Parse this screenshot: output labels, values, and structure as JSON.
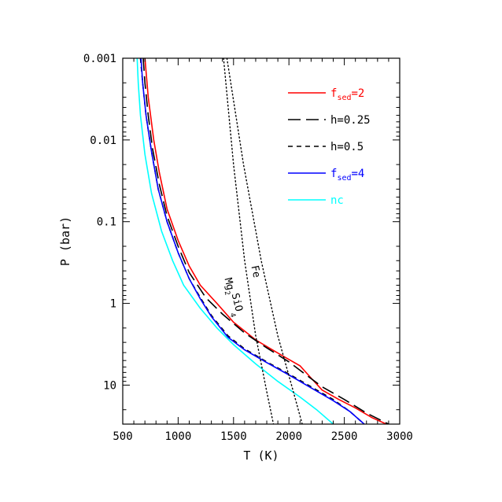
{
  "chart_data": {
    "type": "line",
    "xlabel": "T (K)",
    "ylabel": "P (bar)",
    "xlim": [
      500,
      3000
    ],
    "ylim": [
      0.001,
      30
    ],
    "y_scale": "log",
    "y_inverted": true,
    "grid": false,
    "legend_placement": "top-right",
    "x_ticks": [
      500,
      1000,
      1500,
      2000,
      2500,
      3000
    ],
    "x_tick_labels": [
      "500",
      "1000",
      "1500",
      "2000",
      "2500",
      "3000"
    ],
    "y_ticks": [
      0.001,
      0.01,
      0.1,
      1,
      10
    ],
    "y_tick_labels": [
      "0.001",
      "0.01",
      "0.1",
      "1",
      "10"
    ],
    "series": [
      {
        "name": "f_sed=2",
        "label_main": "f",
        "label_sub": "sed",
        "label_tail": "=2",
        "color": "#ff0000",
        "dash": "solid",
        "points": [
          [
            700,
            0.001
          ],
          [
            730,
            0.003
          ],
          [
            780,
            0.01
          ],
          [
            830,
            0.025
          ],
          [
            900,
            0.07
          ],
          [
            1000,
            0.17
          ],
          [
            1100,
            0.35
          ],
          [
            1200,
            0.6
          ],
          [
            1350,
            1.0
          ],
          [
            1500,
            1.7
          ],
          [
            1700,
            2.8
          ],
          [
            1850,
            3.7
          ],
          [
            1970,
            4.6
          ],
          [
            2100,
            5.8
          ],
          [
            2200,
            8.2
          ],
          [
            2300,
            11.5
          ],
          [
            2450,
            15
          ],
          [
            2600,
            19
          ],
          [
            2750,
            25
          ],
          [
            2880,
            30
          ]
        ]
      },
      {
        "name": "h=0.25",
        "label_main": "h=0.25",
        "label_sub": "",
        "label_tail": "",
        "color": "#000000",
        "dash": "longdash",
        "points": [
          [
            685,
            0.001
          ],
          [
            700,
            0.002
          ],
          [
            730,
            0.005
          ],
          [
            770,
            0.013
          ],
          [
            830,
            0.035
          ],
          [
            900,
            0.085
          ],
          [
            1000,
            0.2
          ],
          [
            1100,
            0.42
          ],
          [
            1250,
            0.85
          ],
          [
            1400,
            1.35
          ],
          [
            1600,
            2.3
          ],
          [
            1800,
            3.5
          ],
          [
            2000,
            5.2
          ],
          [
            2150,
            7.4
          ],
          [
            2300,
            10.5
          ],
          [
            2500,
            15
          ],
          [
            2700,
            22
          ],
          [
            2900,
            30
          ]
        ]
      },
      {
        "name": "h=0.5",
        "label_main": "h=0.5",
        "label_sub": "",
        "label_tail": "",
        "color": "#000000",
        "dash": "shortdash",
        "points": [
          [
            660,
            0.001
          ],
          [
            680,
            0.002
          ],
          [
            710,
            0.005
          ],
          [
            760,
            0.014
          ],
          [
            820,
            0.04
          ],
          [
            900,
            0.1
          ],
          [
            1000,
            0.24
          ],
          [
            1100,
            0.5
          ],
          [
            1200,
            0.85
          ],
          [
            1300,
            1.4
          ],
          [
            1450,
            2.5
          ],
          [
            1600,
            3.6
          ],
          [
            1800,
            5.2
          ],
          [
            2000,
            7.3
          ],
          [
            2200,
            10.5
          ],
          [
            2400,
            15
          ],
          [
            2550,
            21
          ],
          [
            2680,
            30
          ]
        ]
      },
      {
        "name": "f_sed=4",
        "label_main": "f",
        "label_sub": "sed",
        "label_tail": "=4",
        "color": "#0000ff",
        "dash": "solid",
        "points": [
          [
            665,
            0.001
          ],
          [
            680,
            0.002
          ],
          [
            710,
            0.005
          ],
          [
            760,
            0.014
          ],
          [
            820,
            0.04
          ],
          [
            900,
            0.1
          ],
          [
            1000,
            0.24
          ],
          [
            1100,
            0.5
          ],
          [
            1200,
            0.88
          ],
          [
            1300,
            1.45
          ],
          [
            1450,
            2.6
          ],
          [
            1600,
            3.7
          ],
          [
            1800,
            5.3
          ],
          [
            2000,
            7.5
          ],
          [
            2200,
            10.8
          ],
          [
            2400,
            15.5
          ],
          [
            2550,
            21
          ],
          [
            2680,
            30
          ]
        ]
      },
      {
        "name": "nc",
        "label_main": "nc",
        "label_sub": "",
        "label_tail": "",
        "color": "#00ffff",
        "dash": "solid",
        "points": [
          [
            630,
            0.001
          ],
          [
            640,
            0.002
          ],
          [
            660,
            0.005
          ],
          [
            700,
            0.015
          ],
          [
            760,
            0.045
          ],
          [
            850,
            0.13
          ],
          [
            950,
            0.3
          ],
          [
            1050,
            0.6
          ],
          [
            1200,
            1.15
          ],
          [
            1350,
            2.0
          ],
          [
            1500,
            3.2
          ],
          [
            1700,
            5.5
          ],
          [
            1900,
            9.0
          ],
          [
            2100,
            14
          ],
          [
            2250,
            20
          ],
          [
            2400,
            30
          ]
        ]
      }
    ],
    "annotations": [
      {
        "name": "Mg2SiO4 condensation curve",
        "label_main": "Mg",
        "label_sub1": "2",
        "label_mid": "SiO",
        "label_sub2": "4",
        "color": "#000000",
        "dash": "dotted",
        "points": [
          [
            1410,
            0.001
          ],
          [
            1500,
            0.02
          ],
          [
            1600,
            0.3
          ],
          [
            1700,
            2.5
          ],
          [
            1800,
            12
          ],
          [
            1860,
            30
          ]
        ],
        "label_at": [
          1420,
          0.5
        ],
        "label_rotation": 76
      },
      {
        "name": "Fe condensation curve",
        "label_main": "Fe",
        "label_sub1": "",
        "label_mid": "",
        "label_sub2": "",
        "color": "#000000",
        "dash": "dotted",
        "points": [
          [
            1440,
            0.001
          ],
          [
            1590,
            0.02
          ],
          [
            1750,
            0.3
          ],
          [
            1900,
            2.5
          ],
          [
            2040,
            12
          ],
          [
            2120,
            30
          ]
        ],
        "label_at": [
          1660,
          0.35
        ],
        "label_rotation": 78
      }
    ]
  }
}
